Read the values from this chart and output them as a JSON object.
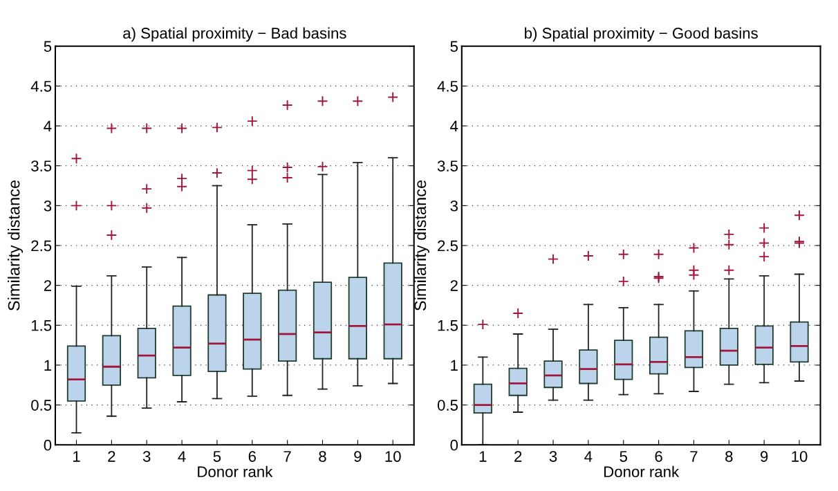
{
  "chart_data": [
    {
      "type": "box",
      "title": "a) Spatial proximity − Bad basins",
      "xlabel": "Donor rank",
      "ylabel": "Similarity distance",
      "categories": [
        "1",
        "2",
        "3",
        "4",
        "5",
        "6",
        "7",
        "8",
        "9",
        "10"
      ],
      "ylim": [
        0,
        5
      ],
      "yticks": [
        0,
        0.5,
        1,
        1.5,
        2,
        2.5,
        3,
        3.5,
        4,
        4.5,
        5
      ],
      "grid": "y",
      "marker": "cross",
      "series": [
        {
          "color": "#bcd3ec",
          "boxes": [
            {
              "low": 0.15,
              "q1": 0.55,
              "median": 0.82,
              "q3": 1.24,
              "high": 1.99,
              "outliers": [
                3.0,
                3.59
              ]
            },
            {
              "low": 0.36,
              "q1": 0.75,
              "median": 0.98,
              "q3": 1.37,
              "high": 2.12,
              "outliers": [
                2.63,
                3.0,
                3.97
              ]
            },
            {
              "low": 0.46,
              "q1": 0.84,
              "median": 1.12,
              "q3": 1.46,
              "high": 2.23,
              "outliers": [
                2.97,
                3.21,
                3.97
              ]
            },
            {
              "low": 0.54,
              "q1": 0.87,
              "median": 1.22,
              "q3": 1.74,
              "high": 2.35,
              "outliers": [
                3.24,
                3.34,
                3.97
              ]
            },
            {
              "low": 0.58,
              "q1": 0.92,
              "median": 1.27,
              "q3": 1.88,
              "high": 3.25,
              "outliers": [
                3.41,
                3.98
              ]
            },
            {
              "low": 0.61,
              "q1": 0.95,
              "median": 1.32,
              "q3": 1.9,
              "high": 2.76,
              "outliers": [
                3.33,
                3.44,
                4.06
              ]
            },
            {
              "low": 0.62,
              "q1": 1.05,
              "median": 1.39,
              "q3": 1.94,
              "high": 2.77,
              "outliers": [
                3.35,
                3.48,
                4.26
              ]
            },
            {
              "low": 0.7,
              "q1": 1.08,
              "median": 1.41,
              "q3": 2.04,
              "high": 3.39,
              "outliers": [
                3.49,
                4.31
              ]
            },
            {
              "low": 0.74,
              "q1": 1.08,
              "median": 1.49,
              "q3": 2.1,
              "high": 3.54,
              "outliers": [
                4.31
              ]
            },
            {
              "low": 0.77,
              "q1": 1.08,
              "median": 1.51,
              "q3": 2.28,
              "high": 3.6,
              "outliers": [
                4.36
              ]
            }
          ]
        }
      ]
    },
    {
      "type": "box",
      "title": "b) Spatial proximity − Good basins",
      "xlabel": "Donor rank",
      "ylabel": "Similarity distance",
      "categories": [
        "1",
        "2",
        "3",
        "4",
        "5",
        "6",
        "7",
        "8",
        "9",
        "10"
      ],
      "ylim": [
        0,
        5
      ],
      "yticks": [
        0,
        0.5,
        1,
        1.5,
        2,
        2.5,
        3,
        3.5,
        4,
        4.5,
        5
      ],
      "grid": "y",
      "marker": "cross",
      "series": [
        {
          "color": "#bcd3ec",
          "boxes": [
            {
              "low": 0.0,
              "q1": 0.4,
              "median": 0.5,
              "q3": 0.76,
              "high": 1.1,
              "outliers": [
                1.51
              ]
            },
            {
              "low": 0.41,
              "q1": 0.62,
              "median": 0.77,
              "q3": 0.96,
              "high": 1.39,
              "outliers": [
                1.65
              ]
            },
            {
              "low": 0.56,
              "q1": 0.72,
              "median": 0.87,
              "q3": 1.05,
              "high": 1.45,
              "outliers": [
                2.33
              ]
            },
            {
              "low": 0.56,
              "q1": 0.77,
              "median": 0.95,
              "q3": 1.19,
              "high": 1.76,
              "outliers": [
                2.37
              ]
            },
            {
              "low": 0.63,
              "q1": 0.82,
              "median": 1.01,
              "q3": 1.31,
              "high": 1.72,
              "outliers": [
                2.05,
                2.39
              ]
            },
            {
              "low": 0.64,
              "q1": 0.89,
              "median": 1.04,
              "q3": 1.35,
              "high": 1.76,
              "outliers": [
                2.09,
                2.11,
                2.39
              ]
            },
            {
              "low": 0.67,
              "q1": 0.97,
              "median": 1.1,
              "q3": 1.43,
              "high": 1.93,
              "outliers": [
                2.13,
                2.19,
                2.47
              ]
            },
            {
              "low": 0.76,
              "q1": 1.0,
              "median": 1.18,
              "q3": 1.46,
              "high": 2.08,
              "outliers": [
                2.19,
                2.51,
                2.64
              ]
            },
            {
              "low": 0.78,
              "q1": 1.01,
              "median": 1.22,
              "q3": 1.49,
              "high": 2.12,
              "outliers": [
                2.36,
                2.53,
                2.72
              ]
            },
            {
              "low": 0.8,
              "q1": 1.04,
              "median": 1.24,
              "q3": 1.54,
              "high": 2.14,
              "outliers": [
                2.53,
                2.55,
                2.88
              ]
            }
          ]
        }
      ]
    }
  ]
}
